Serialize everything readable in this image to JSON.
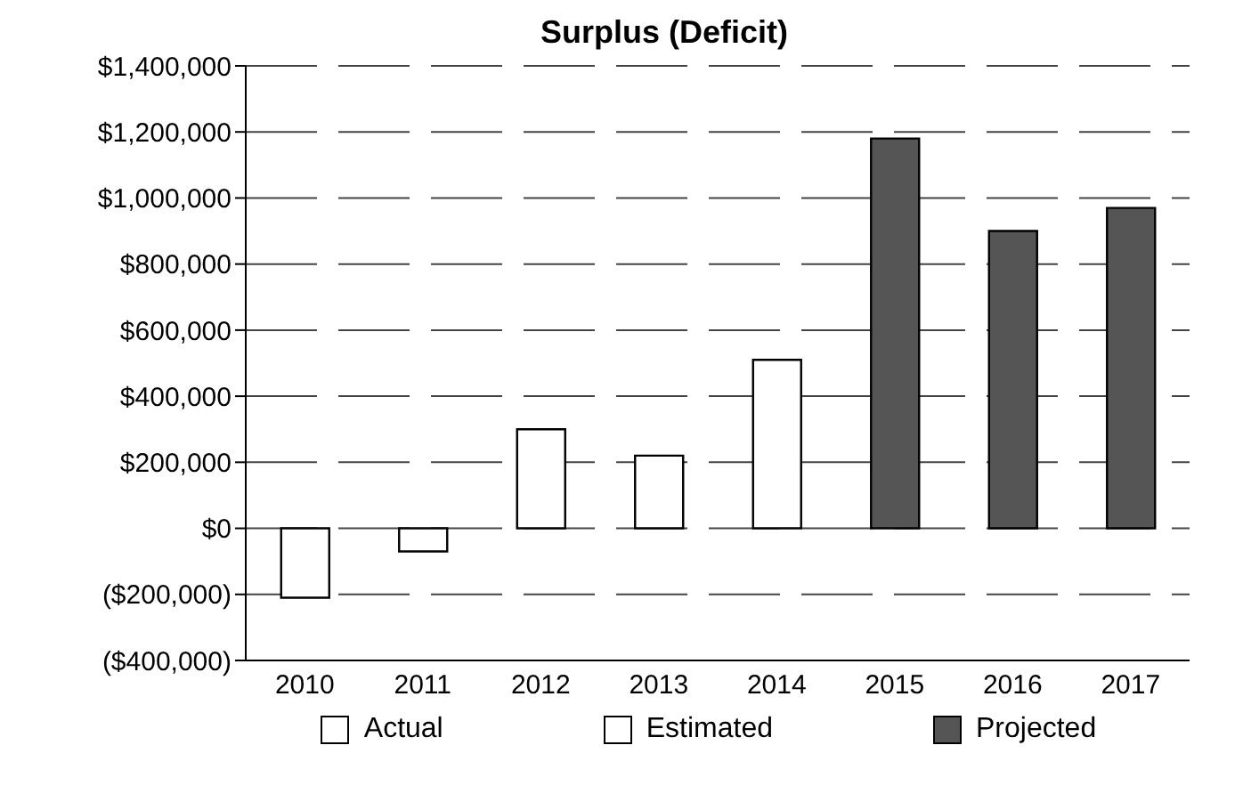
{
  "chart_data": {
    "type": "bar",
    "title": "Surplus (Deficit)",
    "categories": [
      "2010",
      "2011",
      "2012",
      "2013",
      "2014",
      "2015",
      "2016",
      "2017"
    ],
    "stacked": true,
    "series": [
      {
        "name": "Actual",
        "color": "#ffffff",
        "values": [
          -210000,
          -70000,
          null,
          null,
          null,
          null,
          null,
          null
        ]
      },
      {
        "name": "Estimated",
        "color": "#ffffff",
        "values": [
          null,
          null,
          300000,
          220000,
          510000,
          null,
          null,
          null
        ]
      },
      {
        "name": "Projected",
        "color": "#555555",
        "values": [
          null,
          null,
          null,
          null,
          null,
          1180000,
          900000,
          970000
        ]
      }
    ],
    "ylim": [
      -400000,
      1400000
    ],
    "yticks": [
      {
        "value": -400000,
        "label": "($400,000)"
      },
      {
        "value": -200000,
        "label": "($200,000)"
      },
      {
        "value": 0,
        "label": "$0"
      },
      {
        "value": 200000,
        "label": "$200,000"
      },
      {
        "value": 400000,
        "label": "$400,000"
      },
      {
        "value": 600000,
        "label": "$600,000"
      },
      {
        "value": 800000,
        "label": "$800,000"
      },
      {
        "value": 1000000,
        "label": "$1,000,000"
      },
      {
        "value": 1200000,
        "label": "$1,200,000"
      },
      {
        "value": 1400000,
        "label": "$1,400,000"
      }
    ],
    "grid": "y",
    "legend": "bottom"
  }
}
